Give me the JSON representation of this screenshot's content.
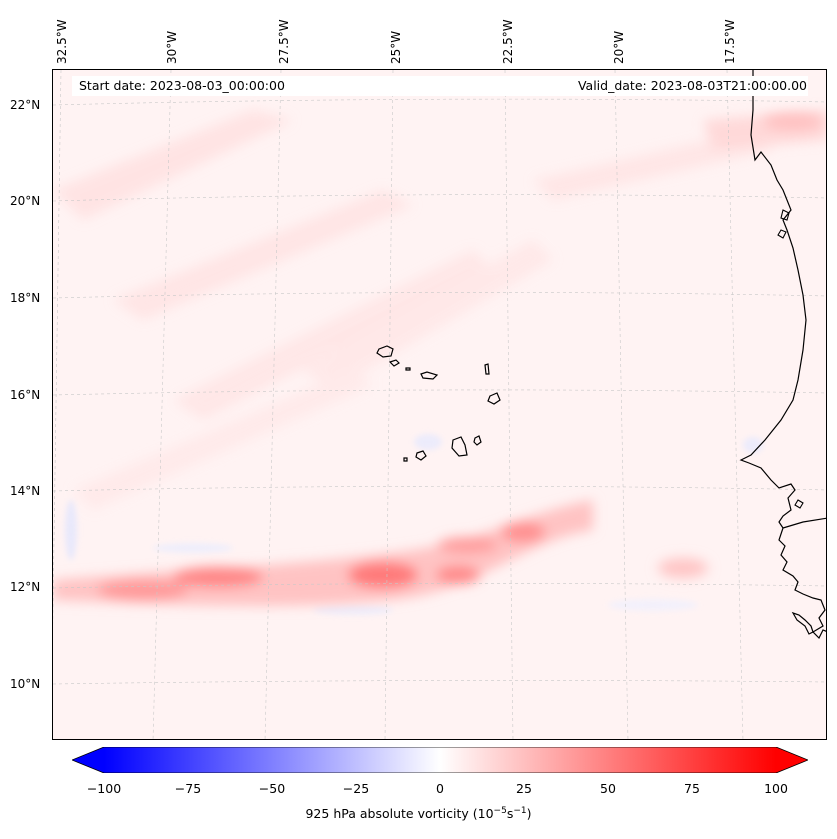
{
  "map": {
    "start_date_label": "Start date: 2023-08-03_00:00:00",
    "valid_date_label": "Valid_date: 2023-08-03T21:00:00.00",
    "longitude_labels": [
      "32.5°W",
      "30°W",
      "27.5°W",
      "25°W",
      "22.5°W",
      "20°W",
      "17.5°W"
    ],
    "latitude_labels": [
      "22°N",
      "20°N",
      "18°N",
      "16°N",
      "14°N",
      "12°N",
      "10°N"
    ],
    "field": "925 hPa absolute vorticity",
    "features": [
      "Cape Verde Islands",
      "West African coastline",
      "vorticity band near 12°N"
    ]
  },
  "colorbar": {
    "ticks": [
      "−100",
      "−75",
      "−50",
      "−25",
      "0",
      "25",
      "50",
      "75",
      "100"
    ],
    "min": -100,
    "max": 100,
    "label_prefix": "925 hPa absolute vorticity (10",
    "label_exp1": "−5",
    "label_mid": "s",
    "label_exp2": "−1",
    "label_suffix": ")",
    "low_color": "#0000ff",
    "mid_color": "#ffffff",
    "high_color": "#ff0000"
  }
}
